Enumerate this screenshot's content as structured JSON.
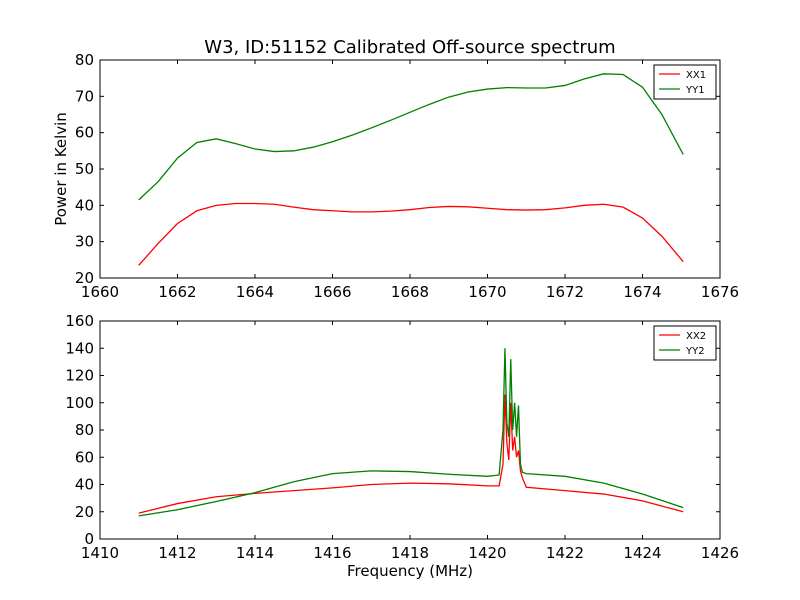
{
  "colors": {
    "XX": "#ff0000",
    "YY": "#008000",
    "axes": "#000000",
    "background": "#ffffff"
  },
  "chart_data": [
    {
      "type": "line",
      "title": "W3, ID:51152 Calibrated Off-source spectrum",
      "xlabel": "",
      "ylabel": "Power in Kelvin",
      "xlim": [
        1660,
        1676
      ],
      "ylim": [
        20,
        80
      ],
      "xticks": [
        1660,
        1662,
        1664,
        1666,
        1668,
        1670,
        1672,
        1674,
        1676
      ],
      "yticks": [
        20,
        30,
        40,
        50,
        60,
        70,
        80
      ],
      "legend": "top-right",
      "grid": false,
      "series": [
        {
          "name": "XX1",
          "color": "#ff0000",
          "x": [
            1661.0,
            1661.5,
            1662.0,
            1662.5,
            1663.0,
            1663.5,
            1664.0,
            1664.5,
            1665.0,
            1665.5,
            1666.0,
            1666.5,
            1667.0,
            1667.5,
            1668.0,
            1668.5,
            1669.0,
            1669.5,
            1670.0,
            1670.5,
            1671.0,
            1671.5,
            1672.0,
            1672.5,
            1673.0,
            1673.5,
            1674.0,
            1674.5,
            1675.05
          ],
          "y": [
            23.5,
            29.5,
            35.0,
            38.5,
            40.0,
            40.5,
            40.5,
            40.3,
            39.5,
            38.8,
            38.5,
            38.2,
            38.2,
            38.4,
            38.8,
            39.4,
            39.7,
            39.6,
            39.2,
            38.8,
            38.7,
            38.8,
            39.3,
            40.0,
            40.3,
            39.5,
            36.5,
            31.5,
            24.5
          ]
        },
        {
          "name": "YY1",
          "color": "#008000",
          "x": [
            1661.0,
            1661.5,
            1662.0,
            1662.5,
            1663.0,
            1663.5,
            1664.0,
            1664.5,
            1665.0,
            1665.5,
            1666.0,
            1666.5,
            1667.0,
            1667.5,
            1668.0,
            1668.5,
            1669.0,
            1669.5,
            1670.0,
            1670.5,
            1671.0,
            1671.5,
            1672.0,
            1672.5,
            1673.0,
            1673.5,
            1674.0,
            1674.5,
            1675.05
          ],
          "y": [
            41.5,
            46.5,
            53.0,
            57.3,
            58.3,
            57.0,
            55.5,
            54.8,
            55.0,
            56.0,
            57.5,
            59.3,
            61.3,
            63.4,
            65.6,
            67.8,
            69.8,
            71.2,
            72.0,
            72.4,
            72.3,
            72.3,
            73.0,
            74.8,
            76.2,
            76.0,
            72.5,
            65.0,
            54.0
          ]
        }
      ]
    },
    {
      "type": "line",
      "title": "",
      "xlabel": "Frequency (MHz)",
      "ylabel": "",
      "xlim": [
        1410,
        1426
      ],
      "ylim": [
        0,
        160
      ],
      "xticks": [
        1410,
        1412,
        1414,
        1416,
        1418,
        1420,
        1422,
        1424,
        1426
      ],
      "yticks": [
        0,
        20,
        40,
        60,
        80,
        100,
        120,
        140,
        160
      ],
      "legend": "top-right",
      "grid": false,
      "series": [
        {
          "name": "XX2",
          "color": "#ff0000",
          "x": [
            1411.0,
            1412.0,
            1413.0,
            1414.0,
            1415.0,
            1416.0,
            1417.0,
            1418.0,
            1419.0,
            1420.0,
            1420.3,
            1420.4,
            1420.45,
            1420.5,
            1420.55,
            1420.6,
            1420.65,
            1420.7,
            1420.75,
            1420.8,
            1420.85,
            1420.9,
            1421.0,
            1422.0,
            1423.0,
            1424.0,
            1425.05
          ],
          "y": [
            19.0,
            26.0,
            31.0,
            33.5,
            35.5,
            37.5,
            40.0,
            41.0,
            40.5,
            39.0,
            39.0,
            55.0,
            106.0,
            70.0,
            58.0,
            100.0,
            65.0,
            75.0,
            60.0,
            65.0,
            50.0,
            45.0,
            38.0,
            35.5,
            33.0,
            28.0,
            20.0
          ]
        },
        {
          "name": "YY2",
          "color": "#008000",
          "x": [
            1411.0,
            1412.0,
            1413.0,
            1414.0,
            1415.0,
            1416.0,
            1417.0,
            1418.0,
            1419.0,
            1420.0,
            1420.3,
            1420.4,
            1420.45,
            1420.5,
            1420.55,
            1420.6,
            1420.65,
            1420.7,
            1420.75,
            1420.8,
            1420.85,
            1420.9,
            1421.0,
            1422.0,
            1423.0,
            1424.0,
            1425.05
          ],
          "y": [
            17.0,
            21.5,
            27.5,
            34.0,
            42.0,
            48.0,
            50.0,
            49.5,
            47.5,
            46.0,
            47.0,
            80.0,
            140.0,
            85.0,
            75.0,
            132.0,
            80.0,
            100.0,
            75.0,
            98.0,
            55.0,
            49.0,
            48.0,
            46.0,
            41.0,
            33.0,
            23.0
          ]
        }
      ]
    }
  ]
}
